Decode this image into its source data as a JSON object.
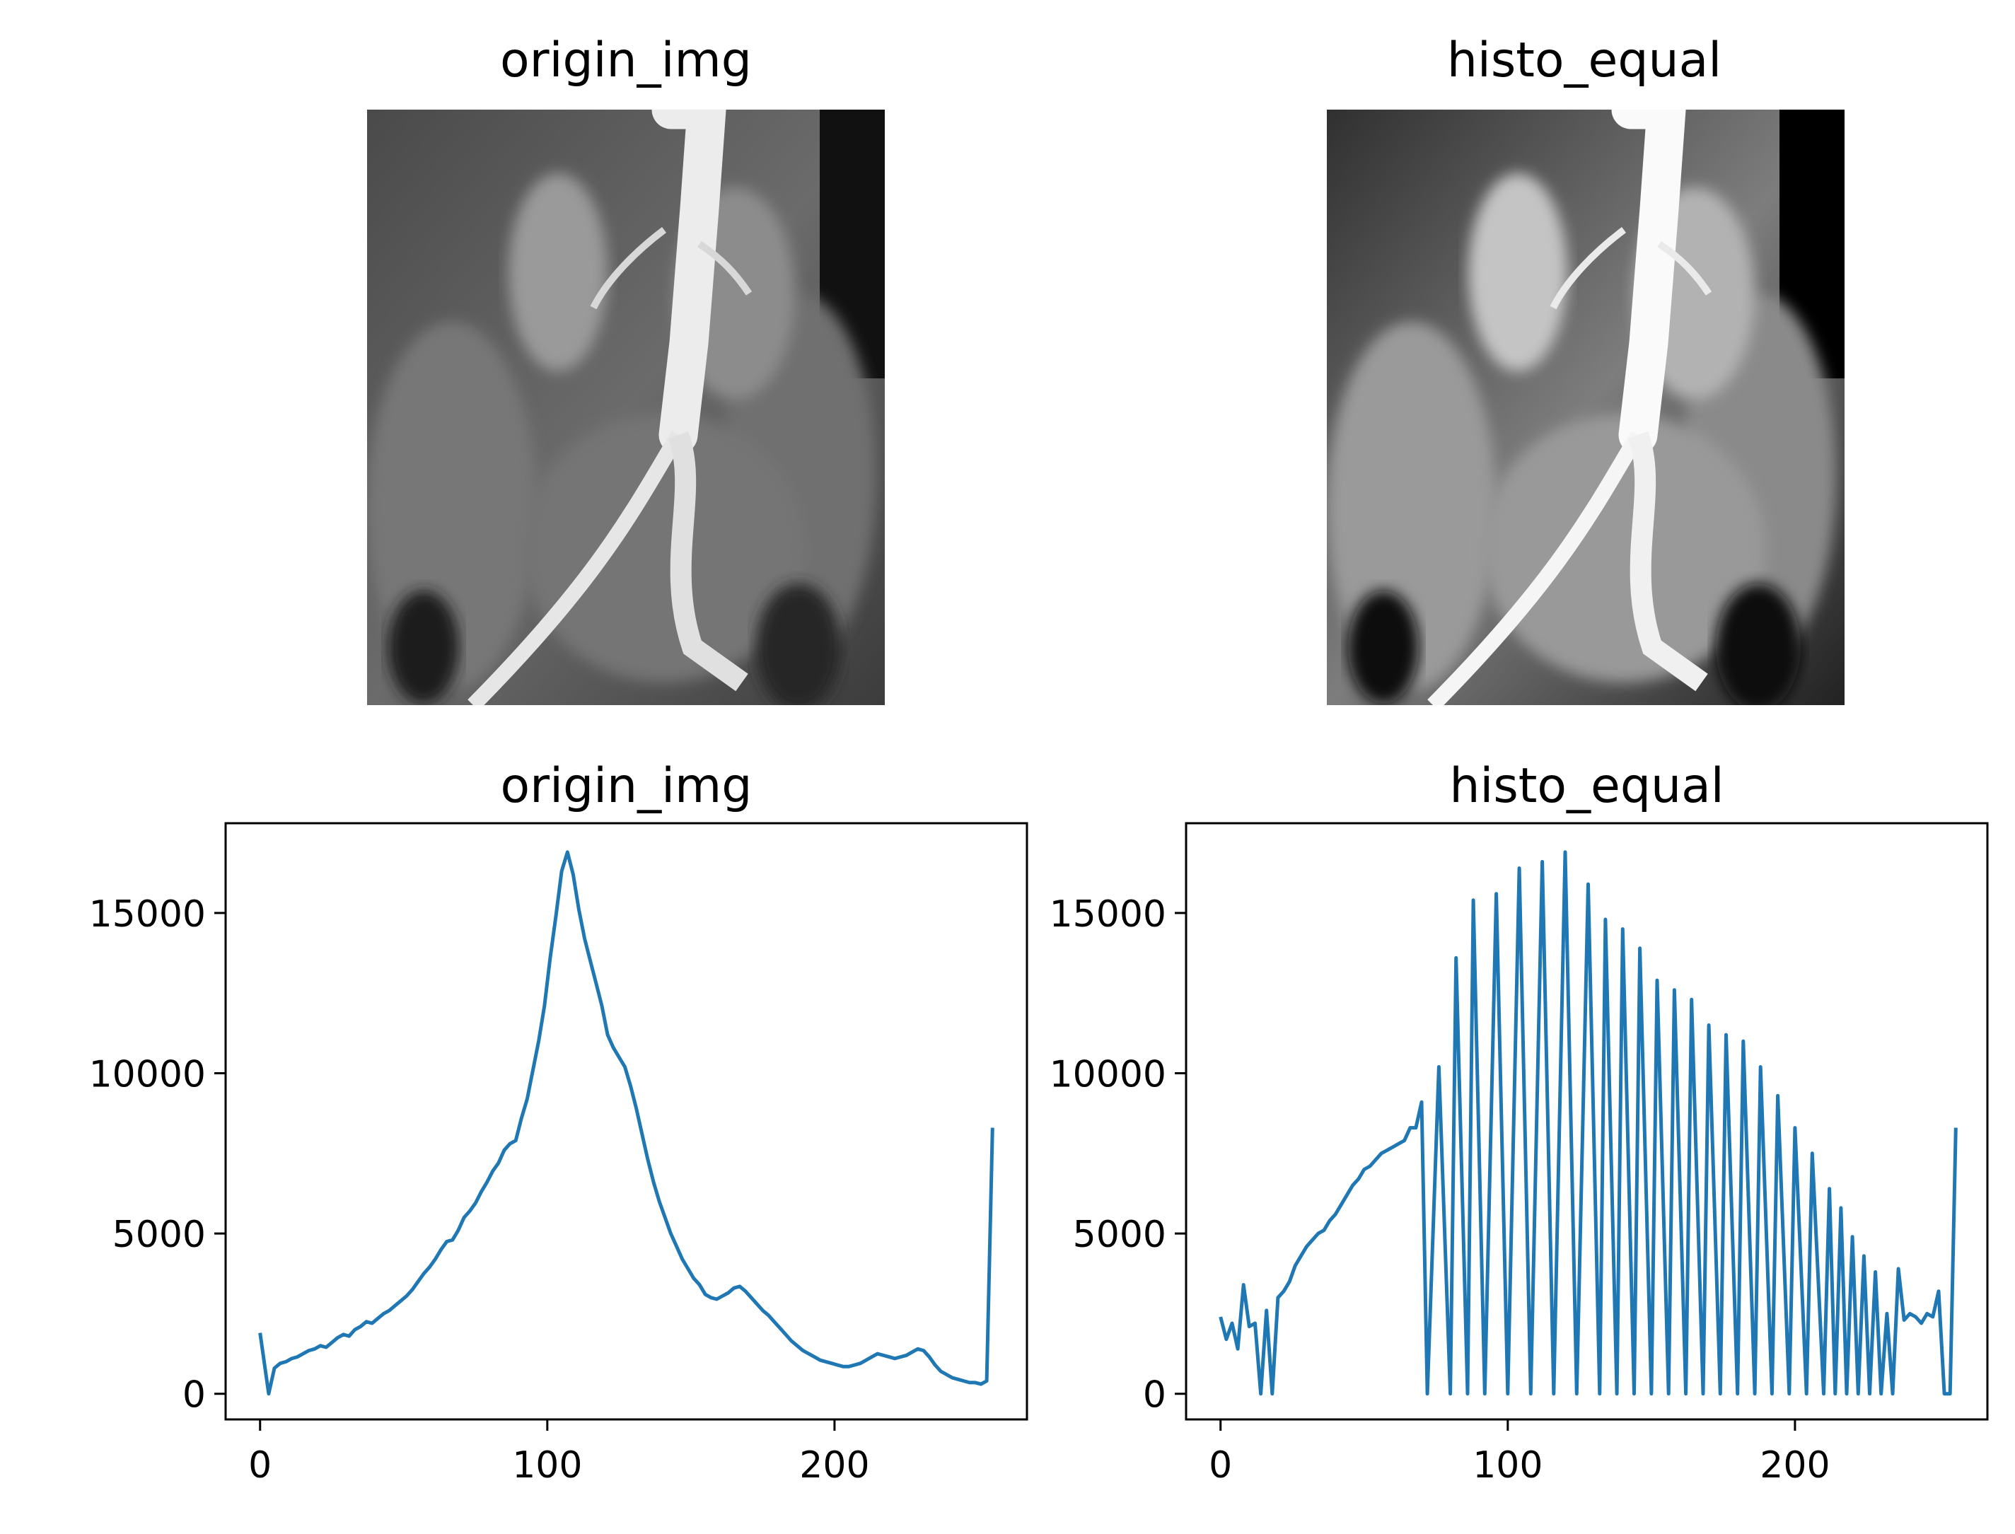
{
  "figure": {
    "panels": [
      {
        "title": "origin_img",
        "kind": "image"
      },
      {
        "title": "histo_equal",
        "kind": "image"
      }
    ]
  },
  "colors": {
    "series": "#1f77b4",
    "axis": "#000000",
    "background": "#ffffff"
  },
  "chart_data": [
    {
      "type": "line",
      "title": "origin_img",
      "xlabel": "",
      "ylabel": "",
      "xlim": [
        -12,
        267
      ],
      "ylim": [
        -800,
        17800
      ],
      "xticks": [
        0,
        100,
        200
      ],
      "yticks": [
        0,
        5000,
        10000,
        15000
      ],
      "grid": false,
      "legend": "none",
      "series": [
        {
          "points": [
            [
              0,
              1900
            ],
            [
              3,
              0
            ],
            [
              5,
              800
            ],
            [
              7,
              950
            ],
            [
              9,
              1000
            ],
            [
              11,
              1100
            ],
            [
              13,
              1150
            ],
            [
              15,
              1250
            ],
            [
              17,
              1350
            ],
            [
              19,
              1400
            ],
            [
              21,
              1500
            ],
            [
              23,
              1450
            ],
            [
              25,
              1600
            ],
            [
              27,
              1750
            ],
            [
              29,
              1850
            ],
            [
              31,
              1800
            ],
            [
              33,
              2000
            ],
            [
              35,
              2100
            ],
            [
              37,
              2250
            ],
            [
              39,
              2200
            ],
            [
              41,
              2350
            ],
            [
              43,
              2500
            ],
            [
              45,
              2600
            ],
            [
              47,
              2750
            ],
            [
              49,
              2900
            ],
            [
              51,
              3050
            ],
            [
              53,
              3250
            ],
            [
              55,
              3500
            ],
            [
              57,
              3750
            ],
            [
              59,
              3950
            ],
            [
              61,
              4200
            ],
            [
              63,
              4500
            ],
            [
              65,
              4750
            ],
            [
              67,
              4800
            ],
            [
              69,
              5100
            ],
            [
              71,
              5500
            ],
            [
              73,
              5700
            ],
            [
              75,
              5950
            ],
            [
              77,
              6300
            ],
            [
              79,
              6600
            ],
            [
              81,
              6950
            ],
            [
              83,
              7200
            ],
            [
              85,
              7600
            ],
            [
              87,
              7800
            ],
            [
              89,
              7900
            ],
            [
              91,
              8600
            ],
            [
              93,
              9200
            ],
            [
              95,
              10100
            ],
            [
              97,
              11000
            ],
            [
              99,
              12100
            ],
            [
              101,
              13600
            ],
            [
              103,
              14900
            ],
            [
              105,
              16300
            ],
            [
              107,
              16900
            ],
            [
              109,
              16200
            ],
            [
              111,
              15100
            ],
            [
              113,
              14200
            ],
            [
              115,
              13500
            ],
            [
              117,
              12800
            ],
            [
              119,
              12100
            ],
            [
              121,
              11200
            ],
            [
              123,
              10800
            ],
            [
              125,
              10500
            ],
            [
              127,
              10200
            ],
            [
              129,
              9600
            ],
            [
              131,
              8900
            ],
            [
              133,
              8100
            ],
            [
              135,
              7300
            ],
            [
              137,
              6600
            ],
            [
              139,
              6000
            ],
            [
              141,
              5500
            ],
            [
              143,
              5000
            ],
            [
              145,
              4600
            ],
            [
              147,
              4200
            ],
            [
              149,
              3900
            ],
            [
              151,
              3600
            ],
            [
              153,
              3400
            ],
            [
              155,
              3100
            ],
            [
              157,
              3000
            ],
            [
              159,
              2950
            ],
            [
              161,
              3050
            ],
            [
              163,
              3150
            ],
            [
              165,
              3300
            ],
            [
              167,
              3350
            ],
            [
              169,
              3200
            ],
            [
              171,
              3000
            ],
            [
              173,
              2800
            ],
            [
              175,
              2600
            ],
            [
              177,
              2450
            ],
            [
              179,
              2250
            ],
            [
              181,
              2050
            ],
            [
              183,
              1850
            ],
            [
              185,
              1650
            ],
            [
              187,
              1500
            ],
            [
              189,
              1350
            ],
            [
              191,
              1250
            ],
            [
              193,
              1150
            ],
            [
              195,
              1050
            ],
            [
              197,
              1000
            ],
            [
              199,
              950
            ],
            [
              201,
              900
            ],
            [
              203,
              850
            ],
            [
              205,
              850
            ],
            [
              207,
              900
            ],
            [
              209,
              950
            ],
            [
              211,
              1050
            ],
            [
              213,
              1150
            ],
            [
              215,
              1250
            ],
            [
              217,
              1200
            ],
            [
              219,
              1150
            ],
            [
              221,
              1100
            ],
            [
              223,
              1150
            ],
            [
              225,
              1200
            ],
            [
              227,
              1300
            ],
            [
              229,
              1400
            ],
            [
              231,
              1350
            ],
            [
              233,
              1150
            ],
            [
              235,
              900
            ],
            [
              237,
              700
            ],
            [
              239,
              600
            ],
            [
              241,
              500
            ],
            [
              243,
              450
            ],
            [
              245,
              400
            ],
            [
              247,
              350
            ],
            [
              249,
              350
            ],
            [
              251,
              300
            ],
            [
              253,
              400
            ],
            [
              255,
              8300
            ]
          ]
        }
      ]
    },
    {
      "type": "line",
      "title": "histo_equal",
      "xlabel": "",
      "ylabel": "",
      "xlim": [
        -12,
        267
      ],
      "ylim": [
        -800,
        17800
      ],
      "xticks": [
        0,
        100,
        200
      ],
      "yticks": [
        0,
        5000,
        10000,
        15000
      ],
      "grid": false,
      "legend": "none",
      "series": [
        {
          "points": [
            [
              0,
              2400
            ],
            [
              2,
              1700
            ],
            [
              4,
              2200
            ],
            [
              6,
              1400
            ],
            [
              8,
              3400
            ],
            [
              10,
              2100
            ],
            [
              12,
              2200
            ],
            [
              14,
              0
            ],
            [
              16,
              2600
            ],
            [
              18,
              0
            ],
            [
              20,
              3000
            ],
            [
              22,
              3200
            ],
            [
              24,
              3500
            ],
            [
              26,
              4000
            ],
            [
              28,
              4300
            ],
            [
              30,
              4600
            ],
            [
              32,
              4800
            ],
            [
              34,
              5000
            ],
            [
              36,
              5100
            ],
            [
              38,
              5400
            ],
            [
              40,
              5600
            ],
            [
              42,
              5900
            ],
            [
              44,
              6200
            ],
            [
              46,
              6500
            ],
            [
              48,
              6700
            ],
            [
              50,
              7000
            ],
            [
              52,
              7100
            ],
            [
              54,
              7300
            ],
            [
              56,
              7500
            ],
            [
              58,
              7600
            ],
            [
              60,
              7700
            ],
            [
              62,
              7800
            ],
            [
              64,
              7900
            ],
            [
              66,
              8300
            ],
            [
              68,
              8300
            ],
            [
              70,
              9100
            ],
            [
              72,
              0
            ],
            [
              76,
              10200
            ],
            [
              80,
              0
            ],
            [
              82,
              13600
            ],
            [
              86,
              0
            ],
            [
              88,
              15400
            ],
            [
              92,
              0
            ],
            [
              96,
              15600
            ],
            [
              100,
              0
            ],
            [
              104,
              16400
            ],
            [
              108,
              0
            ],
            [
              112,
              16600
            ],
            [
              116,
              0
            ],
            [
              120,
              16900
            ],
            [
              124,
              0
            ],
            [
              128,
              15900
            ],
            [
              132,
              0
            ],
            [
              134,
              14800
            ],
            [
              138,
              0
            ],
            [
              140,
              14500
            ],
            [
              144,
              0
            ],
            [
              146,
              13900
            ],
            [
              150,
              0
            ],
            [
              152,
              12900
            ],
            [
              156,
              0
            ],
            [
              158,
              12600
            ],
            [
              162,
              0
            ],
            [
              164,
              12300
            ],
            [
              168,
              0
            ],
            [
              170,
              11500
            ],
            [
              174,
              0
            ],
            [
              176,
              11200
            ],
            [
              180,
              0
            ],
            [
              182,
              11000
            ],
            [
              186,
              0
            ],
            [
              188,
              10200
            ],
            [
              192,
              0
            ],
            [
              194,
              9300
            ],
            [
              198,
              0
            ],
            [
              200,
              8300
            ],
            [
              204,
              0
            ],
            [
              206,
              7500
            ],
            [
              210,
              0
            ],
            [
              212,
              6400
            ],
            [
              214,
              0
            ],
            [
              216,
              5800
            ],
            [
              218,
              0
            ],
            [
              220,
              4900
            ],
            [
              222,
              0
            ],
            [
              224,
              4300
            ],
            [
              226,
              0
            ],
            [
              228,
              3800
            ],
            [
              230,
              0
            ],
            [
              232,
              2500
            ],
            [
              234,
              0
            ],
            [
              236,
              3900
            ],
            [
              238,
              2300
            ],
            [
              240,
              2500
            ],
            [
              242,
              2400
            ],
            [
              244,
              2200
            ],
            [
              246,
              2500
            ],
            [
              248,
              2400
            ],
            [
              250,
              3200
            ],
            [
              252,
              0
            ],
            [
              254,
              0
            ],
            [
              256,
              8300
            ]
          ]
        }
      ]
    }
  ]
}
